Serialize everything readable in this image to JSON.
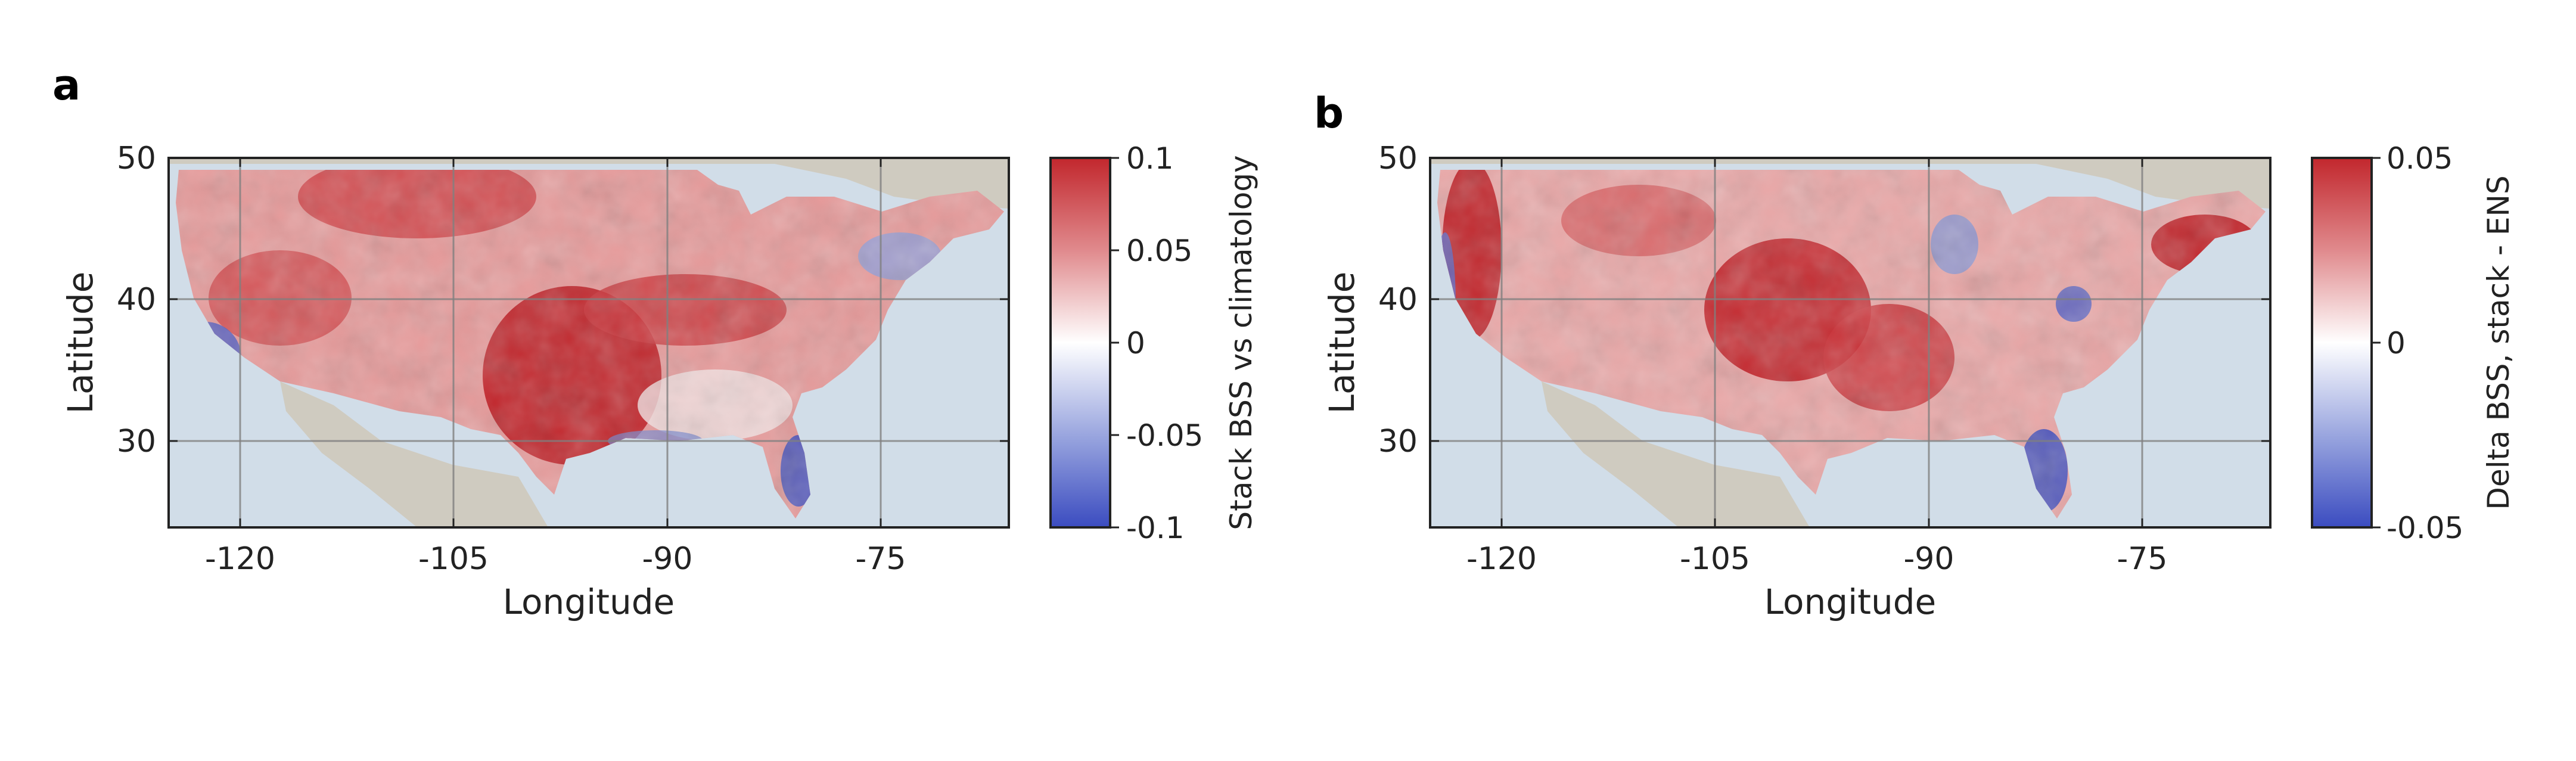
{
  "panels": [
    {
      "letter": "a",
      "xlabel": "Longitude",
      "ylabel": "Latitude",
      "x_ticks": [
        "-120",
        "-105",
        "-90",
        "-75"
      ],
      "y_ticks": [
        "50",
        "40",
        "30"
      ],
      "colorbar": {
        "label": "Stack BSS vs climatology",
        "ticks": [
          "0.1",
          "0.05",
          "0",
          "-0.05",
          "-0.1"
        ],
        "range": [
          -0.1,
          0.1
        ],
        "colormap": [
          "#3b4cc0",
          "#ffffff",
          "#c2272d"
        ]
      }
    },
    {
      "letter": "b",
      "xlabel": "Longitude",
      "ylabel": "Latitude",
      "x_ticks": [
        "-120",
        "-105",
        "-90",
        "-75"
      ],
      "y_ticks": [
        "50",
        "40",
        "30"
      ],
      "colorbar": {
        "label": "Delta BSS, stack - ENS",
        "ticks": [
          "0.05",
          "0",
          "-0.05"
        ],
        "range": [
          -0.05,
          0.05
        ],
        "colormap": [
          "#3b4cc0",
          "#ffffff",
          "#c2272d"
        ]
      }
    }
  ],
  "map_colors": {
    "ocean": "#d1dde8",
    "land": "#cfcbc0",
    "grid": "#808080"
  }
}
